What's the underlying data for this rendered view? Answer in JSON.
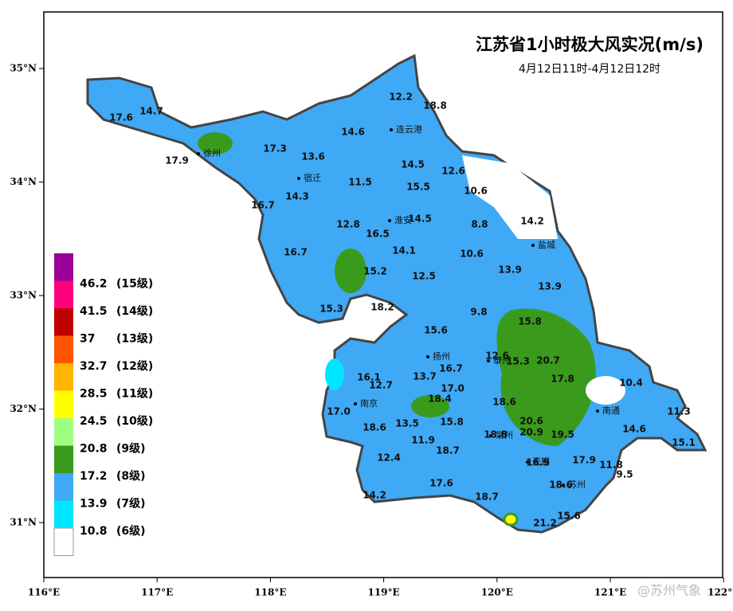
{
  "header": {
    "title": "江苏省1小时极大风实况(m/s)",
    "subtitle": "4月12日11时-4月12日12时"
  },
  "lon_ticks": [
    "116°E",
    "117°E",
    "118°E",
    "119°E",
    "120°E",
    "121°E",
    "122°E"
  ],
  "lat_ticks": [
    "35°N",
    "34°N",
    "33°N",
    "32°N",
    "31°N"
  ],
  "legend": [
    {
      "value": "46.2",
      "level": "(15级)",
      "color": "#990099"
    },
    {
      "value": "41.5",
      "level": "(14级)",
      "color": "#ff007f"
    },
    {
      "value": "37",
      "level": "(13级)",
      "color": "#c00000"
    },
    {
      "value": "32.7",
      "level": "(12级)",
      "color": "#ff5500"
    },
    {
      "value": "28.5",
      "level": "(11级)",
      "color": "#ffb400"
    },
    {
      "value": "24.5",
      "level": "(10级)",
      "color": "#ffff00"
    },
    {
      "value": "20.8",
      "level": "(9级)",
      "color": "#a0ff80"
    },
    {
      "value": "17.2",
      "level": "(8级)",
      "color": "#3a9a1c"
    },
    {
      "value": "13.9",
      "level": "(7级)",
      "color": "#3fa9f5"
    },
    {
      "value": "10.8",
      "level": "(6级)",
      "color": "#00e5ff"
    }
  ],
  "legend_bottom_color": "#ffffff",
  "cities": [
    "徐州",
    "连云港",
    "宿迁",
    "淮安",
    "盐城",
    "扬州",
    "泰州",
    "南京",
    "南通",
    "常州",
    "无锡",
    "苏州"
  ],
  "station_values": [
    "14.7",
    "17.6",
    "17.9",
    "17.3",
    "13.6",
    "14.6",
    "12.2",
    "18.8",
    "14.5",
    "12.6",
    "15.5",
    "10.6",
    "11.5",
    "14.3",
    "16.7",
    "12.8",
    "16.5",
    "14.5",
    "8.8",
    "14.2",
    "16.7",
    "14.1",
    "10.6",
    "15.2",
    "12.5",
    "13.9",
    "13.9",
    "15.3",
    "18.2",
    "9.8",
    "15.8",
    "15.6",
    "12.6",
    "15.3",
    "20.7",
    "16.7",
    "13.7",
    "16.1",
    "17.8",
    "10.4",
    "12.7",
    "17.0",
    "18.4",
    "18.6",
    "17.0",
    "18.6",
    "13.5",
    "15.8",
    "20.6",
    "20.9",
    "18.8",
    "19.5",
    "14.6",
    "11.3",
    "15.1",
    "11.9",
    "18.7",
    "12.4",
    "16.9",
    "17.9",
    "11.8",
    "9.5",
    "17.6",
    "18.6",
    "14.2",
    "18.7",
    "21.2",
    "15.6"
  ],
  "watermark": "@苏州气象"
}
